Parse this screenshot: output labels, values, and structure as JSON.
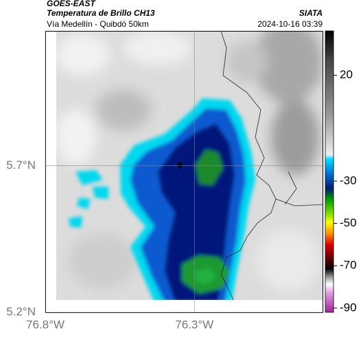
{
  "header": {
    "source": "GOES-EAST",
    "product": "Temperatura de Brillo CH13",
    "agency": "SIATA",
    "route": "Vía Medellín - Quibdó 50km",
    "timestamp": "2024-10-16 03:39"
  },
  "map": {
    "xlim": [
      -76.8,
      -75.87
    ],
    "ylim": [
      5.2,
      6.16
    ],
    "xticks": [
      {
        "value": -76.8,
        "label": "76.8°W"
      },
      {
        "value": -76.3,
        "label": "76.3°W"
      }
    ],
    "yticks": [
      {
        "value": 5.2,
        "label": "5.2°N"
      },
      {
        "value": 5.7,
        "label": "5.7°N"
      }
    ],
    "grid": true
  },
  "colorbar": {
    "lim": [
      -92,
      41
    ],
    "ticks": [
      20,
      -30,
      -50,
      -70,
      -90
    ]
  }
}
